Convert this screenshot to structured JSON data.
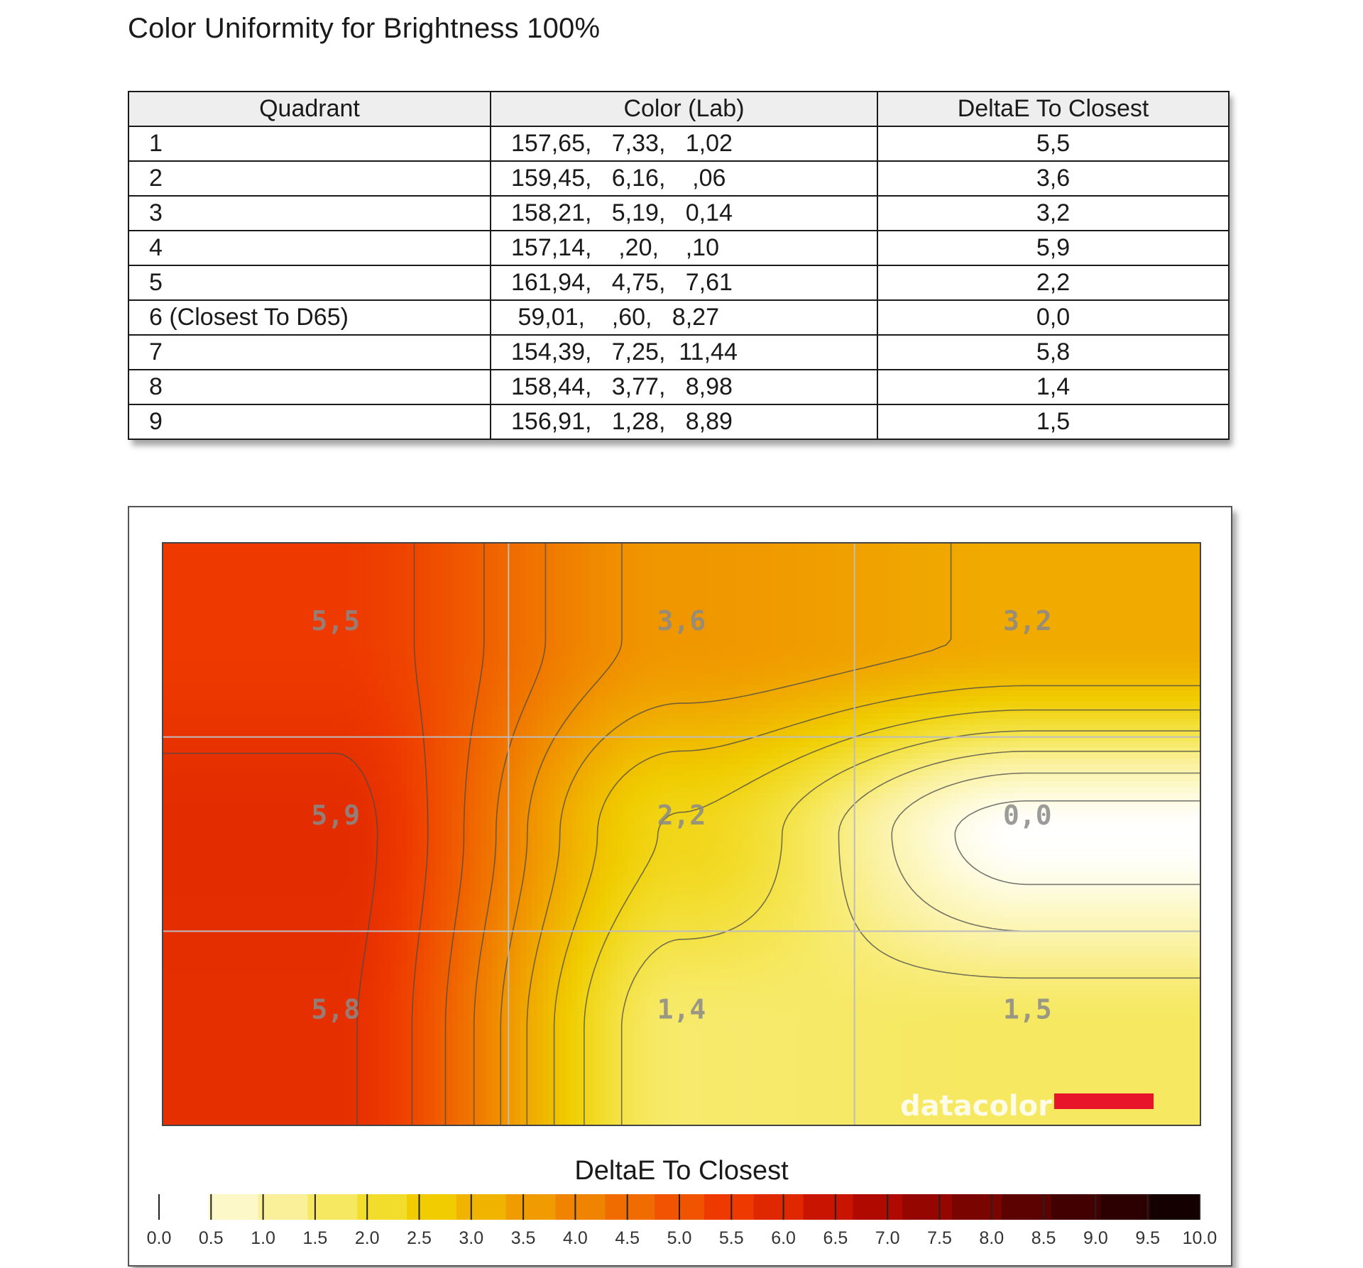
{
  "title": "Color Uniformity for Brightness 100%",
  "table": {
    "headers": [
      "Quadrant",
      "Color (Lab)",
      "DeltaE To Closest"
    ],
    "rows": [
      {
        "quadrant": "1",
        "lab": "157,65,   7,33,   1,02",
        "delta_e": "5,5"
      },
      {
        "quadrant": "2",
        "lab": "159,45,   6,16,    ,06",
        "delta_e": "3,6"
      },
      {
        "quadrant": "3",
        "lab": "158,21,   5,19,   0,14",
        "delta_e": "3,2"
      },
      {
        "quadrant": "4",
        "lab": "157,14,    ,20,    ,10",
        "delta_e": "5,9"
      },
      {
        "quadrant": "5",
        "lab": "161,94,   4,75,   7,61",
        "delta_e": "2,2"
      },
      {
        "quadrant": "6 (Closest To D65)",
        "lab": " 59,01,    ,60,   8,27",
        "delta_e": "0,0"
      },
      {
        "quadrant": "7",
        "lab": "154,39,   7,25,  11,44",
        "delta_e": "5,8"
      },
      {
        "quadrant": "8",
        "lab": "158,44,   3,77,   8,98",
        "delta_e": "1,4"
      },
      {
        "quadrant": "9",
        "lab": "156,91,   1,28,   8,89",
        "delta_e": "1,5"
      }
    ]
  },
  "chart_data": {
    "type": "heatmap",
    "title": "",
    "grid_rows": 3,
    "grid_cols": 3,
    "values": [
      [
        5.5,
        3.6,
        3.2
      ],
      [
        5.9,
        2.2,
        0.0
      ],
      [
        5.8,
        1.4,
        1.5
      ]
    ],
    "cell_labels": [
      [
        "5,5",
        "3,6",
        "3,2"
      ],
      [
        "5,9",
        "2,2",
        "0,0"
      ],
      [
        "5,8",
        "1,4",
        "1,5"
      ]
    ],
    "contour_lines": true,
    "grid": true,
    "colorbar": {
      "label": "DeltaE To Closest",
      "range": [
        0,
        10
      ],
      "ticks": [
        "0.0",
        "0.5",
        "1.0",
        "1.5",
        "2.0",
        "2.5",
        "3.0",
        "3.5",
        "4.0",
        "4.5",
        "5.0",
        "5.5",
        "6.0",
        "6.5",
        "7.0",
        "7.5",
        "8.0",
        "8.5",
        "9.0",
        "9.5",
        "10.0"
      ],
      "colors": [
        "#ffffff",
        "#fdf8c8",
        "#faf09a",
        "#f6e860",
        "#f2dc2c",
        "#f0cc00",
        "#f0b400",
        "#f09c00",
        "#f08400",
        "#f06c00",
        "#f05400",
        "#ee3a00",
        "#e02800",
        "#c81400",
        "#b00a00",
        "#960600",
        "#7a0400",
        "#5c0200",
        "#420100",
        "#2c0000",
        "#140000"
      ]
    },
    "watermark": "datacolor",
    "watermark_accent": "#e8142a"
  }
}
